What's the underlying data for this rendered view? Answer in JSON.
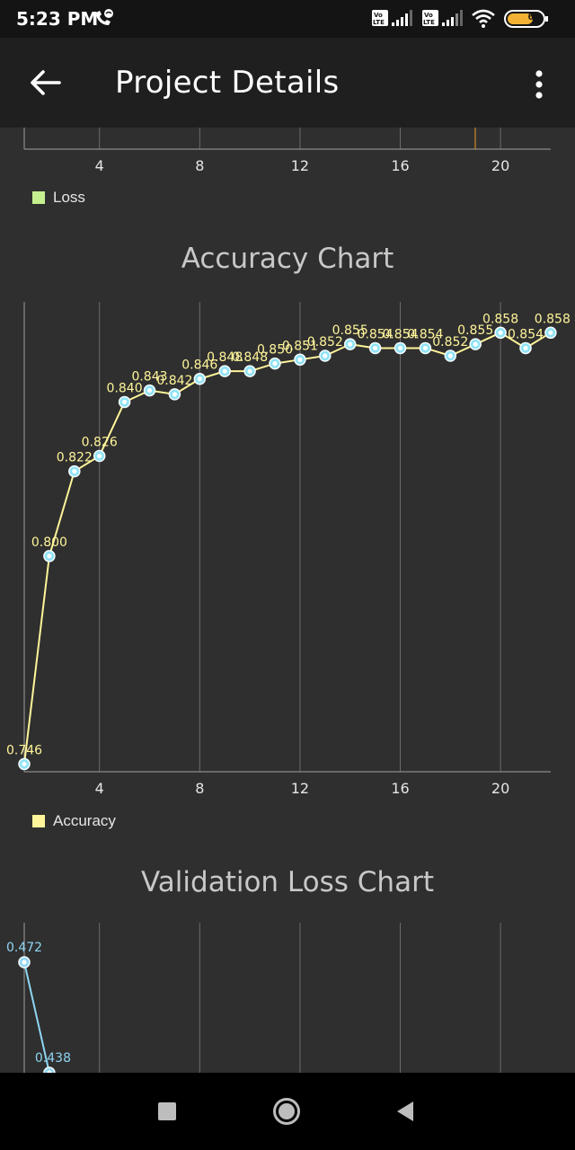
{
  "status_bar": {
    "time": "5:23 PM",
    "battery": "61",
    "sim1": "Vo LTE",
    "sim2": "Vo LTE"
  },
  "app_bar": {
    "title": "Project Details"
  },
  "loss_chart": {
    "legend": "Loss",
    "color": "#c5f08f",
    "x_ticks": [
      "4",
      "8",
      "12",
      "16",
      "20"
    ]
  },
  "accuracy_chart": {
    "title": "Accuracy Chart",
    "legend": "Accuracy",
    "line_color": "#fff59a",
    "point_color": "#8fe3f5"
  },
  "validation_chart": {
    "title": "Validation Loss Chart",
    "line_color": "#8fd6f2",
    "labels": [
      "0.472",
      "0.438"
    ]
  },
  "chart_data": [
    {
      "type": "line",
      "title": "Accuracy Chart",
      "x": [
        1,
        2,
        3,
        4,
        5,
        6,
        7,
        8,
        9,
        10,
        11,
        12,
        13,
        14,
        15,
        16,
        17,
        18,
        19,
        20,
        21,
        22
      ],
      "series": [
        {
          "name": "Accuracy",
          "values": [
            0.746,
            0.8,
            0.822,
            0.826,
            0.84,
            0.843,
            0.842,
            0.846,
            0.848,
            0.848,
            0.85,
            0.851,
            0.852,
            0.855,
            0.854,
            0.854,
            0.854,
            0.852,
            0.855,
            0.858,
            0.854,
            0.858
          ],
          "labels": [
            "0.746",
            "0.800",
            "0.822",
            "0.826",
            "0.840",
            "0.843",
            "0.842",
            "0.846",
            "0.848",
            "0.848",
            "0.850",
            "0.851",
            "0.852",
            "0.855",
            "0.854",
            "0.854",
            "0.854",
            "0.852",
            "0.855",
            "0.858",
            "0.854",
            "0.858"
          ]
        }
      ],
      "x_ticks": [
        "4",
        "8",
        "12",
        "16",
        "20"
      ],
      "xlim": [
        1,
        22
      ],
      "ylim": [
        0.744,
        0.866
      ],
      "legend_position": "bottom-left",
      "grid": "vertical"
    },
    {
      "type": "line",
      "title": "Validation Loss Chart",
      "x": [
        1,
        2
      ],
      "series": [
        {
          "values": [
            0.472,
            0.438
          ],
          "labels": [
            "0.472",
            "0.438"
          ]
        }
      ],
      "xlim": [
        1,
        22
      ]
    }
  ]
}
